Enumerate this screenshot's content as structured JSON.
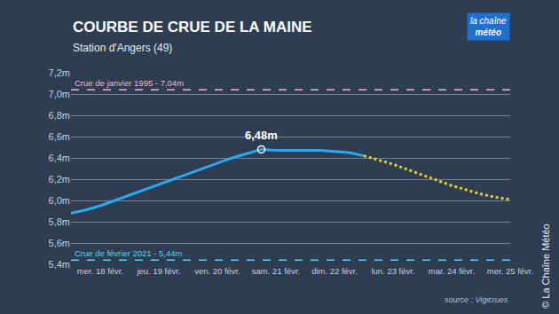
{
  "chart_data": {
    "type": "line",
    "title": "COURBE DE CRUE DE LA MAINE",
    "subtitle": "Station d'Angers (49)",
    "categories": [
      null,
      null,
      "mer. 18 févr.",
      null,
      null,
      null,
      "jeu. 19 févr.",
      null,
      null,
      null,
      "ven. 20 févr.",
      null,
      null,
      null,
      "sam. 21 févr.",
      null,
      null,
      null,
      "dim. 22 févr.",
      null,
      null,
      null,
      "lun. 23 févr.",
      null,
      null,
      null,
      "mar. 24 févr.",
      null,
      null,
      null,
      "mer. 25 févr."
    ],
    "series": [
      {
        "color": "#2aa9f2",
        "line_style": "solid",
        "values": [
          5.88,
          5.91,
          5.95,
          6.0,
          6.05,
          6.1,
          6.15,
          6.2,
          6.25,
          6.3,
          6.35,
          6.4,
          6.44,
          6.48,
          6.47,
          6.47,
          6.47,
          6.47,
          6.46,
          6.45,
          6.42,
          null,
          null,
          null,
          null,
          null,
          null,
          null,
          null,
          null,
          null
        ]
      },
      {
        "color": "#e3cf26",
        "line_style": "dotted",
        "values": [
          null,
          null,
          null,
          null,
          null,
          null,
          null,
          null,
          null,
          null,
          null,
          null,
          null,
          null,
          null,
          null,
          null,
          null,
          null,
          null,
          6.42,
          6.38,
          6.34,
          6.29,
          6.24,
          6.19,
          6.14,
          6.1,
          6.06,
          6.03,
          6.01
        ]
      }
    ],
    "ylim": [
      5.4,
      7.2
    ],
    "yticks": [
      {
        "value": 5.4,
        "label": "5,4m"
      },
      {
        "value": 5.6,
        "label": "5,6m"
      },
      {
        "value": 5.8,
        "label": "5,8m"
      },
      {
        "value": 6.0,
        "label": "6,0m"
      },
      {
        "value": 6.2,
        "label": "6,2m"
      },
      {
        "value": 6.4,
        "label": "6,4m"
      },
      {
        "value": 6.6,
        "label": "6,6m"
      },
      {
        "value": 6.8,
        "label": "6,8m"
      },
      {
        "value": 7.0,
        "label": "7,0m"
      },
      {
        "value": 7.2,
        "label": "7,2m"
      }
    ],
    "grid": true,
    "reference_lines": [
      {
        "value": 7.04,
        "label": "Crue de janvier 1995 - 7,04m",
        "color": "#e9b7cc"
      },
      {
        "value": 5.44,
        "label": "Crue de février 2021 - 5,44m",
        "color": "#4fd3f0"
      }
    ],
    "annotations": [
      {
        "text": "6,48m",
        "y": 6.48
      }
    ],
    "source": "source : Vigicrues",
    "credit": "© La Chaîne Météo",
    "logo": [
      "la chaîne",
      "météo"
    ]
  }
}
